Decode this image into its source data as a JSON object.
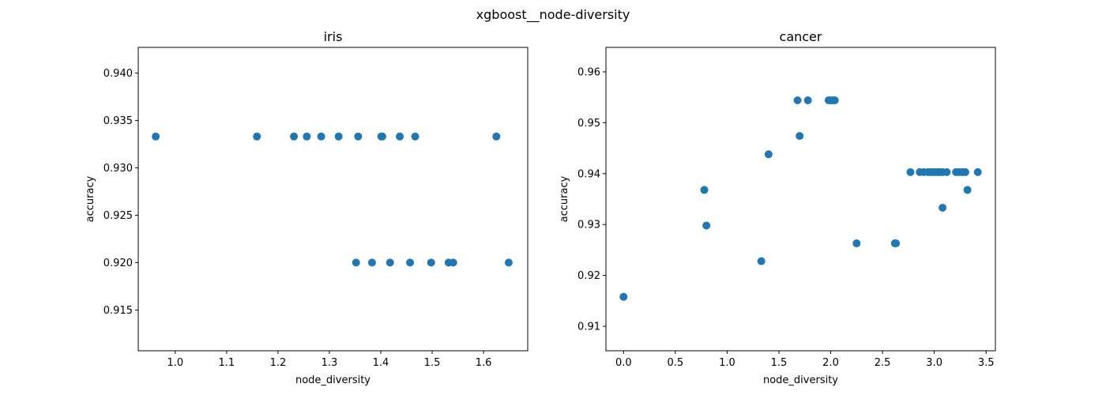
{
  "figure": {
    "suptitle": "xgboost__node-diversity"
  },
  "chart_data": [
    {
      "type": "scatter",
      "title": "iris",
      "xlabel": "node_diversity",
      "ylabel": "accuracy",
      "xlim": [
        0.928,
        1.686
      ],
      "ylim": [
        0.9107,
        0.9427
      ],
      "xticks": [
        "1.0",
        "1.1",
        "1.2",
        "1.3",
        "1.4",
        "1.5",
        "1.6"
      ],
      "yticks": [
        "0.915",
        "0.920",
        "0.925",
        "0.930",
        "0.935",
        "0.940"
      ],
      "color": "#1f77b4",
      "series": [
        {
          "points": [
            [
              0.962,
              0.9333
            ],
            [
              1.159,
              0.9333
            ],
            [
              1.231,
              0.9333
            ],
            [
              1.256,
              0.9333
            ],
            [
              1.284,
              0.9333
            ],
            [
              1.318,
              0.9333
            ],
            [
              1.356,
              0.9333
            ],
            [
              1.401,
              0.9333
            ],
            [
              1.403,
              0.9333
            ],
            [
              1.437,
              0.9333
            ],
            [
              1.467,
              0.9333
            ],
            [
              1.625,
              0.9333
            ],
            [
              1.352,
              0.92
            ],
            [
              1.383,
              0.92
            ],
            [
              1.418,
              0.92
            ],
            [
              1.457,
              0.92
            ],
            [
              1.498,
              0.92
            ],
            [
              1.532,
              0.92
            ],
            [
              1.541,
              0.92
            ],
            [
              1.649,
              0.92
            ]
          ]
        }
      ]
    },
    {
      "type": "scatter",
      "title": "cancer",
      "xlabel": "node_diversity",
      "ylabel": "accuracy",
      "xlim": [
        -0.17,
        3.59
      ],
      "ylim": [
        0.9052,
        0.9648
      ],
      "xticks": [
        "0.0",
        "0.5",
        "1.0",
        "1.5",
        "2.0",
        "2.5",
        "3.0",
        "3.5"
      ],
      "yticks": [
        "0.91",
        "0.92",
        "0.93",
        "0.94",
        "0.95",
        "0.96"
      ],
      "color": "#1f77b4",
      "series": [
        {
          "points": [
            [
              0.0,
              0.9158
            ],
            [
              0.78,
              0.9368
            ],
            [
              0.8,
              0.9298
            ],
            [
              1.33,
              0.9228
            ],
            [
              1.4,
              0.9438
            ],
            [
              1.68,
              0.9544
            ],
            [
              1.7,
              0.9474
            ],
            [
              1.78,
              0.9544
            ],
            [
              1.98,
              0.9544
            ],
            [
              2.0,
              0.9544
            ],
            [
              2.02,
              0.9544
            ],
            [
              2.04,
              0.9544
            ],
            [
              2.25,
              0.9263
            ],
            [
              2.62,
              0.9263
            ],
            [
              2.63,
              0.9263
            ],
            [
              2.77,
              0.9403
            ],
            [
              2.86,
              0.9403
            ],
            [
              2.9,
              0.9403
            ],
            [
              2.94,
              0.9403
            ],
            [
              2.97,
              0.9403
            ],
            [
              3.0,
              0.9403
            ],
            [
              3.03,
              0.9403
            ],
            [
              3.05,
              0.9403
            ],
            [
              3.08,
              0.9403
            ],
            [
              3.12,
              0.9403
            ],
            [
              3.21,
              0.9403
            ],
            [
              3.24,
              0.9403
            ],
            [
              3.27,
              0.9403
            ],
            [
              3.3,
              0.9403
            ],
            [
              3.42,
              0.9403
            ],
            [
              3.08,
              0.9333
            ],
            [
              3.32,
              0.9368
            ]
          ]
        }
      ]
    }
  ]
}
